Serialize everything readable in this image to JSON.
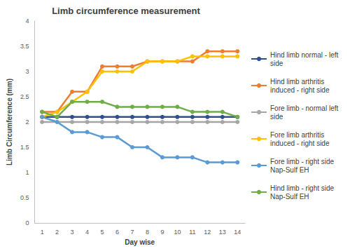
{
  "chart_data": {
    "type": "line",
    "title": "Limb circumference measurement",
    "x_label": "Day wise",
    "y_label": "Limb Circumference (mm)",
    "categories": [
      1,
      2,
      3,
      4,
      5,
      6,
      7,
      8,
      9,
      10,
      11,
      12,
      13,
      14
    ],
    "ylim": [
      0,
      4
    ],
    "yticks": [
      0,
      0.5,
      1,
      1.5,
      2,
      2.5,
      3,
      3.5,
      4
    ],
    "grid": false,
    "legend": "right",
    "marker": "circle",
    "series": [
      {
        "name": "Hind limb normal - left side",
        "color": "#2f4f8f",
        "values": [
          2.1,
          2.1,
          2.1,
          2.1,
          2.1,
          2.1,
          2.1,
          2.1,
          2.1,
          2.1,
          2.1,
          2.1,
          2.1,
          2.1
        ]
      },
      {
        "name": "Hind limb arthritis induced - right side",
        "color": "#ed7d31",
        "values": [
          2.2,
          2.2,
          2.6,
          2.6,
          3.1,
          3.1,
          3.1,
          3.2,
          3.2,
          3.2,
          3.2,
          3.4,
          3.4,
          3.4
        ]
      },
      {
        "name": "Fore limb - normal left side",
        "color": "#a5a5a5",
        "values": [
          2.0,
          2.0,
          2.0,
          2.0,
          2.0,
          2.0,
          2.0,
          2.0,
          2.0,
          2.0,
          2.0,
          2.0,
          2.0,
          2.0
        ]
      },
      {
        "name": "Fore limb arthritis induced - right side",
        "color": "#ffc000",
        "values": [
          2.1,
          2.2,
          2.4,
          2.6,
          3.0,
          3.0,
          3.0,
          3.2,
          3.2,
          3.2,
          3.3,
          3.3,
          3.3,
          3.3
        ]
      },
      {
        "name": "Fore limb - right side Nap-Sulf EH",
        "color": "#5b9bd5",
        "values": [
          2.1,
          2.0,
          1.8,
          1.8,
          1.7,
          1.7,
          1.5,
          1.5,
          1.3,
          1.3,
          1.3,
          1.2,
          1.2,
          1.2
        ]
      },
      {
        "name": "Hind limb - right side Nap-Sulf EH",
        "color": "#70ad47",
        "values": [
          2.2,
          2.1,
          2.4,
          2.4,
          2.4,
          2.3,
          2.3,
          2.3,
          2.3,
          2.3,
          2.2,
          2.2,
          2.2,
          2.1
        ]
      }
    ]
  }
}
